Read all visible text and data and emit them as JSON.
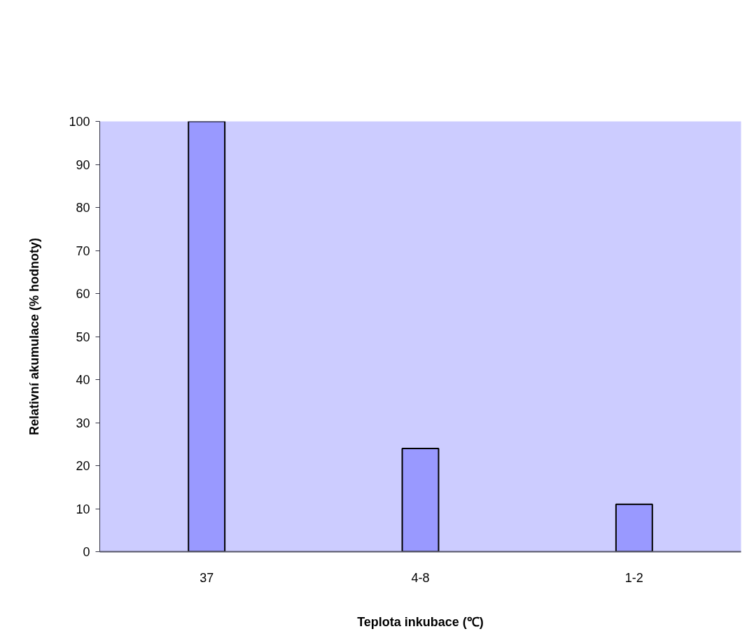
{
  "chart_data": {
    "type": "bar",
    "xlabel": "Teplota inkubace (℃)",
    "ylabel": "Relativní akumulace (% hodnoty)",
    "categories": [
      "37",
      "4-8",
      "1-2"
    ],
    "values": [
      100,
      24,
      11
    ],
    "color": "#9999ff",
    "ylim": [
      0,
      100
    ],
    "yticks": [
      0,
      10,
      20,
      30,
      40,
      50,
      60,
      70,
      80,
      90,
      100
    ],
    "grid": false
  }
}
